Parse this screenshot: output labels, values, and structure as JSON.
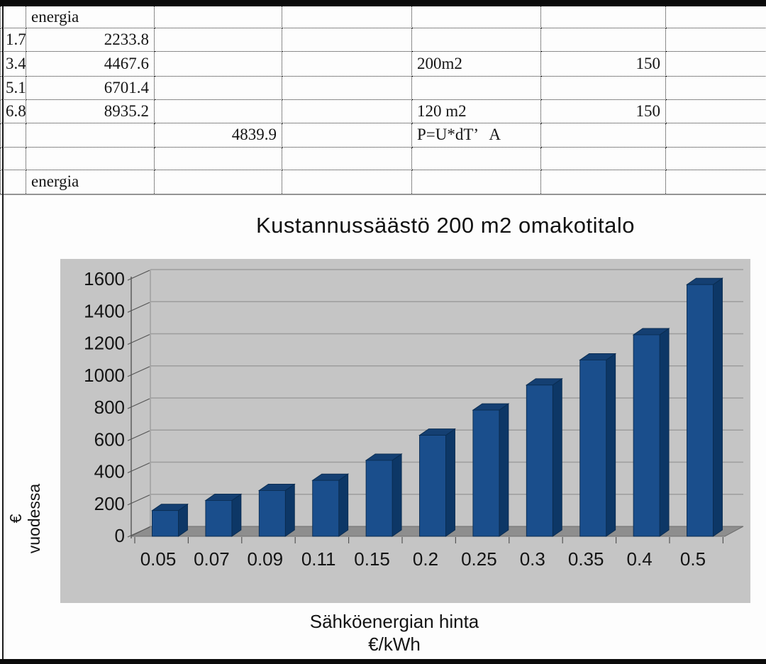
{
  "table": {
    "rows": [
      [
        "",
        "energia",
        "",
        "",
        "",
        "",
        ""
      ],
      [
        "1.7",
        "2233.8",
        "",
        "",
        "",
        "",
        ""
      ],
      [
        "3.4",
        "4467.6",
        "",
        "",
        "200m2",
        "150",
        ""
      ],
      [
        "5.1",
        "6701.4",
        "",
        "",
        "",
        "",
        ""
      ],
      [
        "6.8",
        "8935.2",
        "",
        "",
        "120 m2",
        "150",
        ""
      ],
      [
        "",
        "",
        "4839.9",
        "",
        "P=U*dT’   A",
        "",
        ""
      ],
      [
        "",
        "",
        "",
        "",
        "",
        "",
        ""
      ],
      [
        "",
        "energia",
        "",
        "",
        "",
        "",
        ""
      ]
    ]
  },
  "chart_data": {
    "type": "bar",
    "style": "3d-column",
    "title": "Kustannussäästö 200 m2 omakotitalo",
    "categories": [
      "0.05",
      "0.07",
      "0.09",
      "0.11",
      "0.15",
      "0.2",
      "0.25",
      "0.3",
      "0.35",
      "0.4",
      "0.5"
    ],
    "values": [
      156,
      219,
      281,
      344,
      469,
      625,
      782,
      938,
      1094,
      1251,
      1564
    ],
    "xlabel_lines": [
      "Sähköenergian hinta",
      "€/kWh"
    ],
    "ylabel_lines": [
      "€",
      "vuodessa"
    ],
    "ylim": [
      0,
      1600
    ],
    "ytick_step": 200,
    "grid": true,
    "legend_position": "none",
    "colors": {
      "bar_front": "#1a4e8c",
      "bar_side": "#0d3766",
      "bar_top": "#143f72",
      "bar_outline": "#0a2c50",
      "plot_bg": "#c5c5c5",
      "gridline": "#9d9d9d",
      "floor": "#8e8e8e",
      "floor_edge": "#6e6e6e",
      "axis": "#555555",
      "text": "#141414"
    }
  }
}
